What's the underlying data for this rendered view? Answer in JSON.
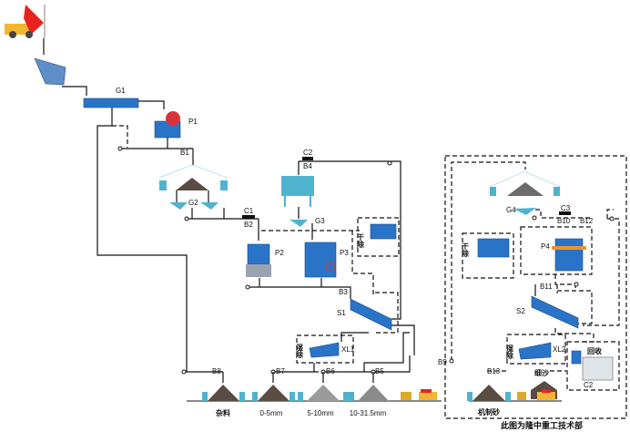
{
  "equipment_labels": {
    "g1": "G1",
    "p1": "P1",
    "b1": "B1",
    "g2": "G2",
    "c1": "C1",
    "b2": "B2",
    "c2": "C2",
    "b4": "B4",
    "g3": "G3",
    "p2": "P2",
    "p3": "P3",
    "b3": "B3",
    "s1": "S1",
    "xl1": "XL1",
    "b5": "B5",
    "b6": "B6",
    "b7": "B7",
    "b8": "B8",
    "b9": "B9",
    "g4": "G4",
    "c3": "C3",
    "b10": "B10",
    "b12": "B12",
    "p4": "P4",
    "b11": "B11",
    "s2": "S2",
    "xl2": "XL2",
    "b13": "B13",
    "c2b": "C2"
  },
  "boxes": {
    "dry_dust_1": "干除",
    "wet_dust_1": "湿除",
    "dry_dust_2": "干除",
    "wet_dust_2": "湿除",
    "recovery": "回收",
    "fine_sand": "细沙"
  },
  "products": [
    "杂料",
    "0-5mm",
    "5-10mm",
    "10-31.5mm"
  ],
  "right_product": "机制砂",
  "credit": "此图为隆中重工技术部",
  "colors": {
    "equipment": "#2a74c8",
    "pile": "#5a4b43",
    "bin": "#4fb3d0",
    "truck": "#f2b630",
    "truck_bed": "#e8231f"
  }
}
